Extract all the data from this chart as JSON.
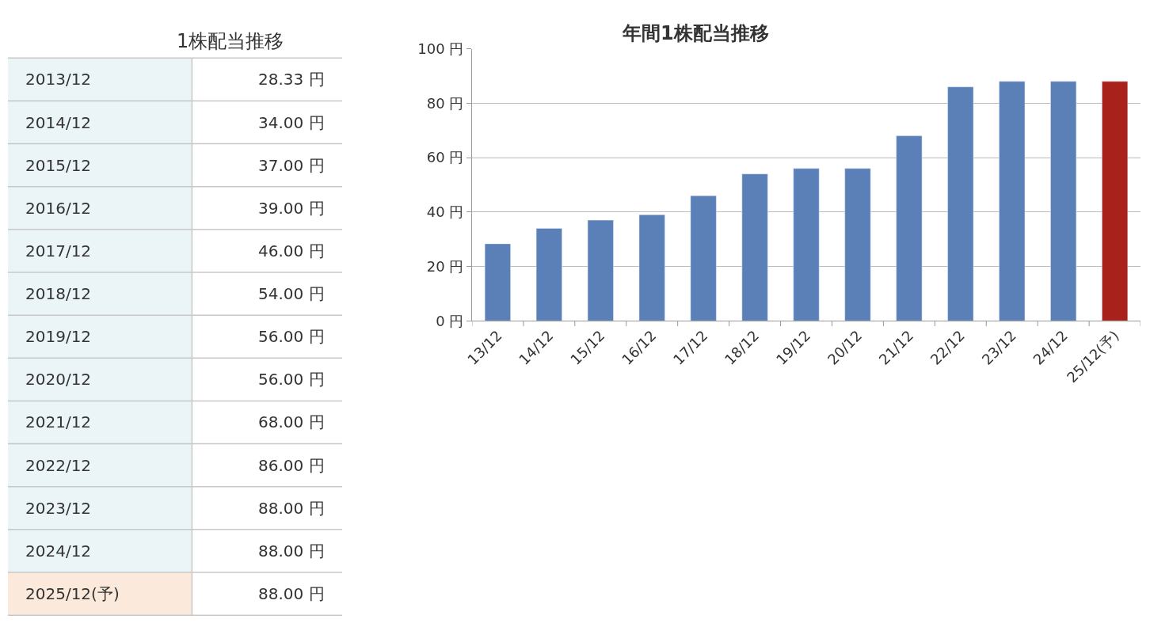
{
  "chart_data": [
    {
      "type": "other",
      "title": "1株配当推移",
      "categories": [
        "2013/12",
        "2014/12",
        "2015/12",
        "2016/12",
        "2017/12",
        "2018/12",
        "2019/12",
        "2020/12",
        "2021/12",
        "2022/12",
        "2023/12",
        "2024/12",
        "2025/12(予)"
      ],
      "values": [
        28.33,
        34.0,
        37.0,
        39.0,
        46.0,
        54.0,
        56.0,
        56.0,
        68.0,
        86.0,
        88.0,
        88.0,
        88.0
      ],
      "value_labels": [
        "28.33 円",
        "34.00 円",
        "37.00 円",
        "39.00 円",
        "46.00 円",
        "54.00 円",
        "56.00 円",
        "56.00 円",
        "68.00 円",
        "86.00 円",
        "88.00 円",
        "88.00 円",
        "88.00 円"
      ],
      "colors": [
        "#ebf5f7",
        "#ebf5f7",
        "#ebf5f7",
        "#ebf5f7",
        "#ebf5f7",
        "#ebf5f7",
        "#ebf5f7",
        "#ebf5f7",
        "#ebf5f7",
        "#ebf5f7",
        "#ebf5f7",
        "#ebf5f7",
        "#fbeadb"
      ]
    },
    {
      "type": "bar",
      "title": "年間1株配当推移",
      "categories": [
        "13/12",
        "14/12",
        "15/12",
        "16/12",
        "17/12",
        "18/12",
        "19/12",
        "20/12",
        "21/12",
        "22/12",
        "23/12",
        "24/12",
        "25/12(予)"
      ],
      "values": [
        28.33,
        34.0,
        37.0,
        39.0,
        46.0,
        54.0,
        56.0,
        56.0,
        68.0,
        86.0,
        88.0,
        88.0,
        88.0
      ],
      "colors": [
        "#5b80b8",
        "#5b80b8",
        "#5b80b8",
        "#5b80b8",
        "#5b80b8",
        "#5b80b8",
        "#5b80b8",
        "#5b80b8",
        "#5b80b8",
        "#5b80b8",
        "#5b80b8",
        "#5b80b8",
        "#a8211a"
      ],
      "ylim": [
        0,
        100
      ],
      "yticks": [
        {
          "value": 0,
          "label": "0 円"
        },
        {
          "value": 20,
          "label": "20 円"
        },
        {
          "value": 40,
          "label": "40 円"
        },
        {
          "value": 60,
          "label": "60 円"
        },
        {
          "value": 80,
          "label": "80 円"
        },
        {
          "value": 100,
          "label": "100 円"
        }
      ],
      "grid": "y"
    }
  ]
}
